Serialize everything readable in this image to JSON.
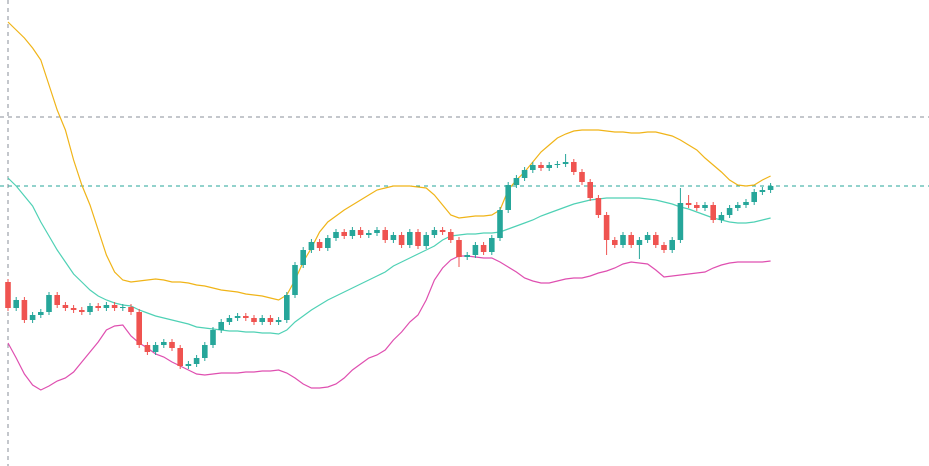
{
  "chart_data": {
    "type": "candlestick",
    "ylim": [
      0,
      466
    ],
    "up_color": "#26a69a",
    "down_color": "#ef5350",
    "candles": {
      "open": [
        184,
        158,
        166,
        146,
        151,
        154,
        171,
        161,
        158,
        156,
        154,
        160,
        158,
        161,
        158,
        159,
        154,
        121,
        114,
        121,
        124,
        118,
        100,
        102,
        108,
        121,
        136,
        144,
        148,
        150,
        148,
        144,
        148,
        144,
        146,
        171,
        201,
        216,
        224,
        218,
        228,
        234,
        230,
        236,
        231,
        233,
        236,
        226,
        231,
        221,
        234,
        220,
        231,
        236,
        234,
        226,
        209,
        211,
        221,
        214,
        228,
        256,
        281,
        288,
        296,
        301,
        298,
        301,
        302,
        304,
        294,
        284,
        268,
        251,
        226,
        221,
        231,
        221,
        226,
        231,
        221,
        216,
        226,
        263,
        261,
        258,
        261,
        246,
        251,
        258,
        261,
        264,
        274,
        276
      ],
      "high": [
        187,
        169,
        169,
        154,
        157,
        174,
        174,
        164,
        161,
        159,
        163,
        163,
        164,
        164,
        162,
        162,
        157,
        124,
        124,
        127,
        127,
        121,
        105,
        111,
        124,
        139,
        147,
        151,
        153,
        153,
        151,
        151,
        151,
        149,
        174,
        204,
        219,
        227,
        227,
        231,
        237,
        237,
        239,
        239,
        236,
        239,
        239,
        234,
        234,
        237,
        237,
        234,
        239,
        239,
        237,
        229,
        214,
        224,
        224,
        231,
        259,
        284,
        291,
        299,
        304,
        304,
        304,
        305,
        312,
        307,
        297,
        287,
        271,
        254,
        229,
        234,
        234,
        229,
        234,
        234,
        224,
        229,
        278,
        271,
        264,
        264,
        264,
        254,
        261,
        264,
        267,
        277,
        279,
        283
      ],
      "low": [
        155,
        155,
        143,
        143,
        148,
        151,
        158,
        155,
        153,
        151,
        151,
        155,
        155,
        155,
        155,
        151,
        118,
        111,
        111,
        118,
        115,
        97,
        97,
        99,
        105,
        118,
        133,
        141,
        145,
        145,
        141,
        141,
        141,
        141,
        143,
        168,
        198,
        213,
        215,
        215,
        225,
        227,
        227,
        228,
        228,
        230,
        223,
        223,
        218,
        218,
        217,
        217,
        228,
        231,
        223,
        199,
        206,
        208,
        211,
        211,
        225,
        253,
        278,
        285,
        293,
        295,
        295,
        298,
        299,
        291,
        281,
        265,
        248,
        211,
        218,
        218,
        218,
        207,
        223,
        218,
        213,
        213,
        223,
        258,
        255,
        255,
        243,
        243,
        248,
        255,
        258,
        261,
        271,
        273
      ],
      "close": [
        158,
        166,
        146,
        151,
        154,
        171,
        161,
        158,
        156,
        154,
        160,
        158,
        161,
        158,
        159,
        154,
        121,
        114,
        121,
        124,
        118,
        100,
        102,
        108,
        121,
        136,
        144,
        148,
        150,
        148,
        144,
        148,
        144,
        146,
        171,
        201,
        216,
        224,
        218,
        228,
        234,
        230,
        236,
        231,
        233,
        236,
        226,
        231,
        221,
        234,
        220,
        231,
        236,
        234,
        226,
        209,
        211,
        221,
        214,
        228,
        256,
        281,
        288,
        296,
        301,
        298,
        301,
        302,
        304,
        294,
        284,
        268,
        251,
        226,
        221,
        231,
        221,
        226,
        231,
        221,
        216,
        226,
        263,
        261,
        258,
        261,
        246,
        251,
        258,
        261,
        264,
        274,
        276,
        280
      ]
    },
    "bands": [
      {
        "color": "#f0b418",
        "values": [
          444,
          436,
          428,
          418,
          406,
          381,
          356,
          336,
          306,
          281,
          261,
          236,
          211,
          194,
          186,
          184,
          185,
          186,
          187,
          186,
          184,
          184,
          183,
          181,
          180,
          178,
          176,
          175,
          174,
          172,
          171,
          170,
          168,
          166,
          171,
          186,
          204,
          218,
          234,
          244,
          250,
          256,
          261,
          266,
          271,
          276,
          278,
          280,
          280,
          280,
          279,
          278,
          271,
          261,
          251,
          248,
          249,
          250,
          250,
          251,
          256,
          276,
          286,
          294,
          304,
          314,
          321,
          328,
          332,
          335,
          336,
          336,
          336,
          335,
          334,
          334,
          333,
          333,
          334,
          334,
          332,
          330,
          326,
          321,
          316,
          308,
          301,
          294,
          286,
          281,
          280,
          281,
          286,
          290
        ]
      },
      {
        "color": "#4fd1b5",
        "values": [
          288,
          280,
          270,
          260,
          244,
          230,
          216,
          204,
          192,
          184,
          176,
          170,
          166,
          163,
          161,
          160,
          156,
          153,
          150,
          148,
          146,
          144,
          142,
          139,
          138,
          137,
          136,
          135,
          135,
          134,
          134,
          133,
          133,
          132,
          136,
          144,
          150,
          156,
          161,
          166,
          170,
          174,
          178,
          182,
          186,
          190,
          194,
          200,
          204,
          208,
          212,
          216,
          220,
          226,
          230,
          231,
          232,
          232,
          233,
          233,
          234,
          237,
          240,
          243,
          246,
          250,
          253,
          256,
          259,
          262,
          264,
          266,
          267,
          268,
          268,
          268,
          268,
          268,
          267,
          266,
          264,
          262,
          259,
          257,
          254,
          251,
          248,
          246,
          244,
          243,
          243,
          244,
          246,
          248
        ]
      },
      {
        "color": "#df4fb0",
        "values": [
          123,
          108,
          92,
          81,
          76,
          80,
          85,
          88,
          94,
          104,
          114,
          124,
          136,
          140,
          141,
          130,
          123,
          118,
          112,
          109,
          104,
          100,
          96,
          92,
          91,
          92,
          93,
          93,
          93,
          94,
          94,
          95,
          95,
          96,
          93,
          88,
          82,
          78,
          78,
          79,
          82,
          88,
          96,
          102,
          108,
          111,
          116,
          126,
          134,
          144,
          151,
          166,
          186,
          198,
          206,
          210,
          210,
          209,
          208,
          208,
          204,
          199,
          194,
          188,
          185,
          183,
          183,
          185,
          187,
          188,
          188,
          190,
          193,
          195,
          198,
          202,
          204,
          203,
          202,
          196,
          189,
          190,
          191,
          192,
          193,
          194,
          198,
          201,
          203,
          204,
          204,
          204,
          204,
          205
        ]
      }
    ],
    "reference_lines": [
      {
        "value": 349,
        "color": "#8a8f99"
      },
      {
        "value": 280,
        "color": "#26a69a"
      }
    ]
  }
}
